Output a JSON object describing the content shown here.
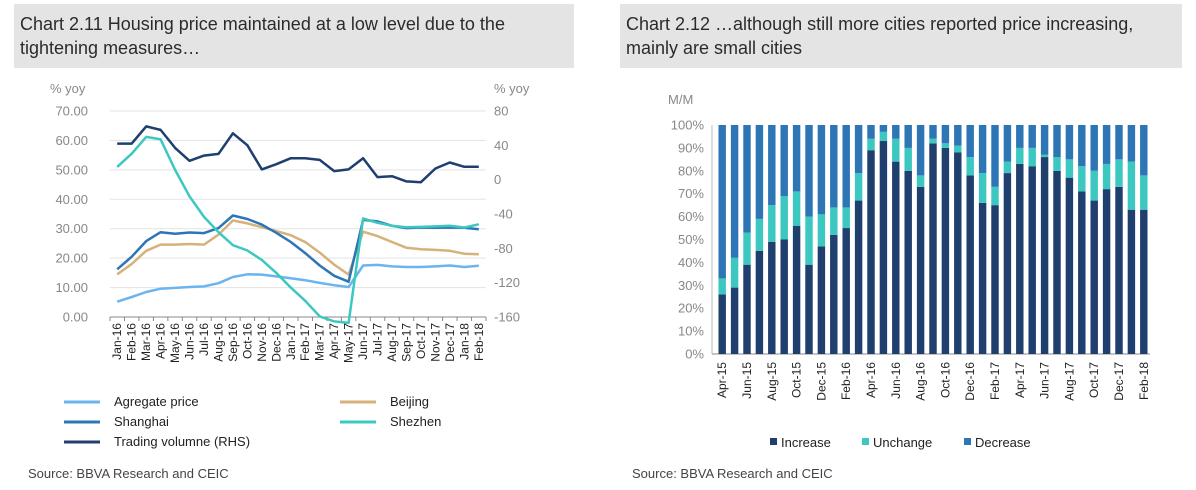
{
  "left": {
    "title": "Chart 2.11 Housing price maintained  at a low level due to the tightening  measures…",
    "source": "Source: BBVA Research and CEIC"
  },
  "right": {
    "title": "Chart 2.12 …although still more cities reported price increasing, mainly are small cities",
    "source": "Source: BBVA Research and CEIC"
  },
  "chart_data": [
    {
      "type": "line",
      "ylabel_left": "% yoy",
      "ylabel_right": "% yoy",
      "ylim_left": [
        0,
        70
      ],
      "ylim_right": [
        -160,
        80
      ],
      "yticks_left": [
        "0.00",
        "10.00",
        "20.00",
        "30.00",
        "40.00",
        "50.00",
        "60.00",
        "70.00"
      ],
      "yticks_right": [
        "-160",
        "-120",
        "-80",
        "-40",
        "0",
        "40",
        "80"
      ],
      "x": [
        "Jan-16",
        "Feb-16",
        "Mar-16",
        "Apr-16",
        "May-16",
        "Jun-16",
        "Jul-16",
        "Aug-16",
        "Sep-16",
        "Oct-16",
        "Nov-16",
        "Dec-16",
        "Jan-17",
        "Feb-17",
        "Mar-17",
        "Apr-17",
        "May-17",
        "Jun-17",
        "Jul-17",
        "Aug-17",
        "Sep-17",
        "Oct-17",
        "Nov-17",
        "Dec-17",
        "Jan-18",
        "Feb-18"
      ],
      "xtick_labels": [
        "Jan-16",
        "Feb-16",
        "Mar-16",
        "Apr-16",
        "May-16",
        "Jun-16",
        "Jul-16",
        "Aug-16",
        "Sep-16",
        "Oct-16",
        "Nov-16",
        "Dec-16",
        "Jan-17",
        "Feb-17",
        "Mar-17",
        "Apr-17",
        "May-17",
        "Jun-17",
        "Jul-17",
        "Aug-17",
        "Sep-17",
        "Oct-17",
        "Nov-17",
        "Dec-17",
        "Jan-18",
        "Feb-18"
      ],
      "grid": true,
      "legend_position": "bottom",
      "series": [
        {
          "name": "Agregate price",
          "axis": "left",
          "color": "#6cb4ee",
          "values": [
            5.2,
            6.8,
            8.5,
            9.6,
            9.9,
            10.2,
            10.4,
            11.5,
            13.6,
            14.5,
            14.4,
            13.8,
            13.2,
            12.5,
            11.6,
            10.8,
            10.2,
            17.5,
            17.7,
            17.2,
            17.0,
            17.0,
            17.2,
            17.5,
            17.0,
            17.4
          ]
        },
        {
          "name": "Beijing",
          "axis": "left",
          "color": "#d5b27a",
          "values": [
            14.5,
            18.0,
            22.5,
            24.6,
            24.6,
            24.8,
            24.6,
            28.0,
            32.8,
            31.8,
            30.5,
            29.2,
            27.8,
            25.5,
            21.9,
            17.8,
            14.4,
            29.0,
            27.5,
            25.5,
            23.5,
            23.0,
            22.8,
            22.5,
            21.5,
            21.3
          ]
        },
        {
          "name": "Shanghai",
          "axis": "left",
          "color": "#2e75b6",
          "values": [
            16.2,
            20.5,
            25.8,
            28.8,
            28.3,
            28.7,
            28.5,
            30.2,
            34.5,
            33.3,
            31.4,
            28.6,
            25.5,
            21.7,
            17.5,
            14.0,
            12.0,
            33.0,
            32.5,
            31.0,
            30.2,
            30.4,
            30.3,
            30.4,
            30.3,
            29.8
          ]
        },
        {
          "name": "Shezhen",
          "axis": "left",
          "color": "#3cc8c0",
          "values": [
            51.0,
            55.5,
            61.2,
            60.4,
            50.0,
            41.0,
            34.0,
            28.8,
            24.4,
            22.6,
            19.4,
            15.0,
            10.0,
            5.5,
            0.2,
            -1.5,
            -2.0,
            33.5,
            32.0,
            31.0,
            30.5,
            30.6,
            30.8,
            31.0,
            30.4,
            31.5
          ]
        },
        {
          "name": "Trading volumne (RHS)",
          "axis": "right",
          "color": "#1f3f6e",
          "values": [
            42,
            42,
            62,
            58,
            37,
            22,
            28,
            30,
            54,
            40,
            12,
            18,
            25,
            25,
            23,
            10,
            12,
            25,
            3,
            4,
            -2,
            -3,
            13,
            20,
            15,
            15
          ]
        }
      ]
    },
    {
      "type": "bar",
      "stacked": true,
      "ylabel": "M/M",
      "ylim": [
        0,
        100
      ],
      "yticks": [
        "0%",
        "10%",
        "20%",
        "30%",
        "40%",
        "50%",
        "60%",
        "70%",
        "80%",
        "90%",
        "100%"
      ],
      "xtick_labels": [
        "Apr-15",
        "Jun-15",
        "Aug-15",
        "Oct-15",
        "Dec-15",
        "Feb-16",
        "Apr-16",
        "Jun-16",
        "Aug-16",
        "Oct-16",
        "Dec-16",
        "Feb-17",
        "Apr-17",
        "Jun-17",
        "Aug-17",
        "Oct-17",
        "Dec-17",
        "Feb-18"
      ],
      "grid": false,
      "legend_position": "bottom",
      "series": [
        {
          "name": "Increase",
          "color": "#1f3f6e",
          "values": [
            26,
            29,
            39,
            45,
            49,
            50,
            56,
            39,
            47,
            52,
            55,
            67,
            89,
            93,
            84,
            80,
            73,
            92,
            90,
            88,
            78,
            66,
            65,
            79,
            83,
            82,
            86,
            80,
            77,
            71,
            67,
            72,
            73,
            63,
            63
          ]
        },
        {
          "name": "Unchange",
          "color": "#3cc8c0",
          "values": [
            7,
            13,
            14,
            14,
            16,
            19,
            15,
            21,
            14,
            12,
            9,
            12,
            5,
            4,
            10,
            10,
            5,
            2,
            2,
            3,
            8,
            13,
            8,
            5,
            7,
            8,
            1,
            6,
            8,
            11,
            13,
            11,
            12,
            21,
            15
          ]
        },
        {
          "name": "Decrease",
          "color": "#2e75b6",
          "values": [
            67,
            58,
            47,
            41,
            35,
            31,
            29,
            40,
            39,
            36,
            36,
            21,
            6,
            3,
            6,
            10,
            22,
            6,
            8,
            9,
            14,
            21,
            27,
            16,
            10,
            10,
            13,
            14,
            15,
            18,
            20,
            17,
            15,
            16,
            22
          ]
        }
      ]
    }
  ]
}
